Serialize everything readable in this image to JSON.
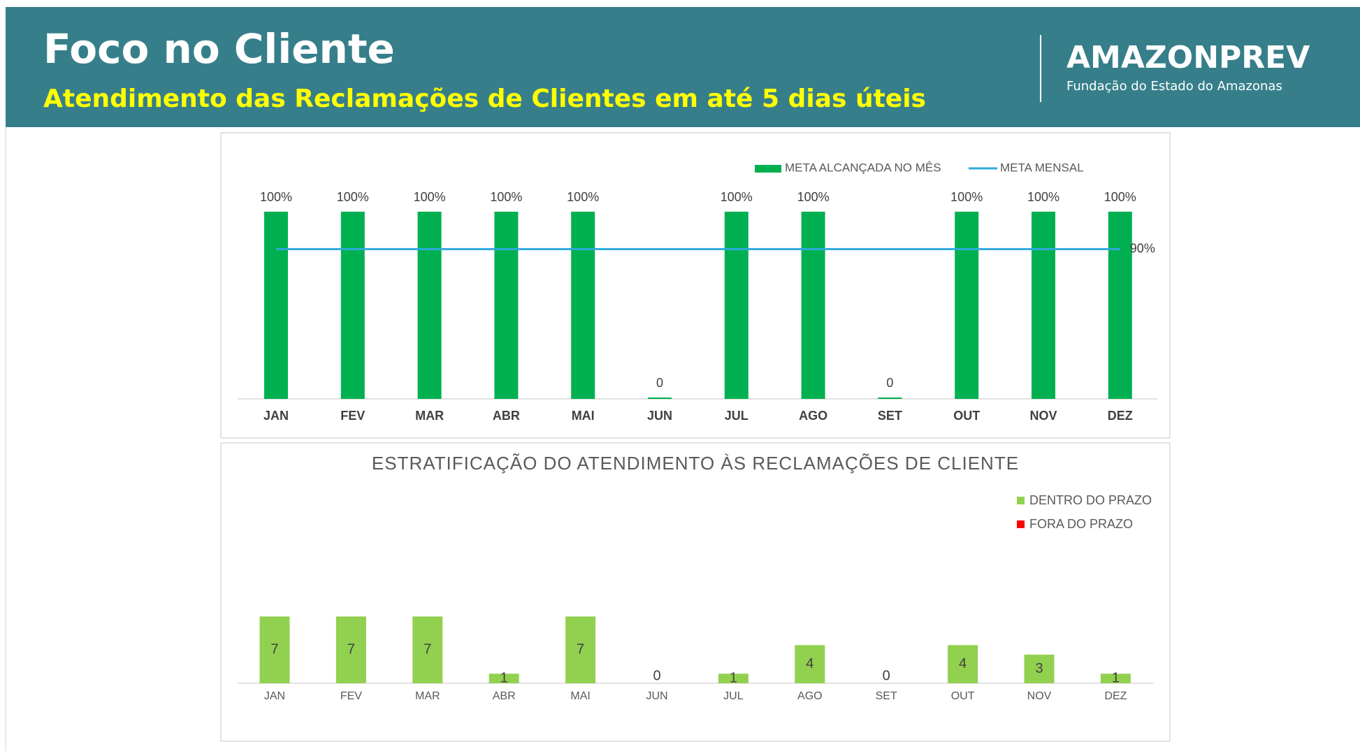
{
  "header": {
    "title": "Foco no Cliente",
    "subtitle": "Atendimento das Reclamações de Clientes em até 5 dias úteis",
    "brand": "AMAZONPREV",
    "brand_subtitle": "Fundação do Estado do Amazonas"
  },
  "chart_data": [
    {
      "type": "bar_line",
      "categories": [
        "JAN",
        "FEV",
        "MAR",
        "ABR",
        "MAI",
        "JUN",
        "JUL",
        "AGO",
        "SET",
        "OUT",
        "NOV",
        "DEZ"
      ],
      "series": [
        {
          "name": "META ALCANÇADA NO MÊS",
          "color": "#00b050",
          "type": "bar",
          "values": [
            100,
            100,
            100,
            100,
            100,
            0,
            100,
            100,
            0,
            100,
            100,
            100
          ],
          "value_labels": [
            "100%",
            "100%",
            "100%",
            "100%",
            "100%",
            "0",
            "100%",
            "100%",
            "0",
            "100%",
            "100%",
            "100%"
          ]
        },
        {
          "name": "META MENSAL",
          "color": "#2eaadc",
          "type": "line",
          "values": [
            90,
            90,
            90,
            90,
            90,
            90,
            90,
            90,
            90,
            90,
            90,
            90
          ],
          "value_labels": [
            null,
            null,
            null,
            null,
            null,
            null,
            null,
            null,
            null,
            null,
            null,
            "90%"
          ]
        }
      ],
      "ylim": [
        50,
        100
      ],
      "legend": "top-right"
    },
    {
      "type": "stacked_bar",
      "title": "ESTRATIFICAÇÃO DO ATENDIMENTO ÀS RECLAMAÇÕES DE CLIENTE",
      "categories": [
        "JAN",
        "FEV",
        "MAR",
        "ABR",
        "MAI",
        "JUN",
        "JUL",
        "AGO",
        "SET",
        "OUT",
        "NOV",
        "DEZ"
      ],
      "series": [
        {
          "name": "DENTRO DO PRAZO",
          "color": "#92d050",
          "values": [
            7,
            7,
            7,
            1,
            7,
            0,
            1,
            4,
            0,
            4,
            3,
            1
          ]
        },
        {
          "name": "FORA DO PRAZO",
          "color": "#ff0000",
          "values": [
            0,
            0,
            0,
            0,
            0,
            0,
            0,
            0,
            0,
            0,
            0,
            0
          ]
        }
      ],
      "ylim": [
        0,
        20
      ],
      "legend": "top-right"
    }
  ]
}
